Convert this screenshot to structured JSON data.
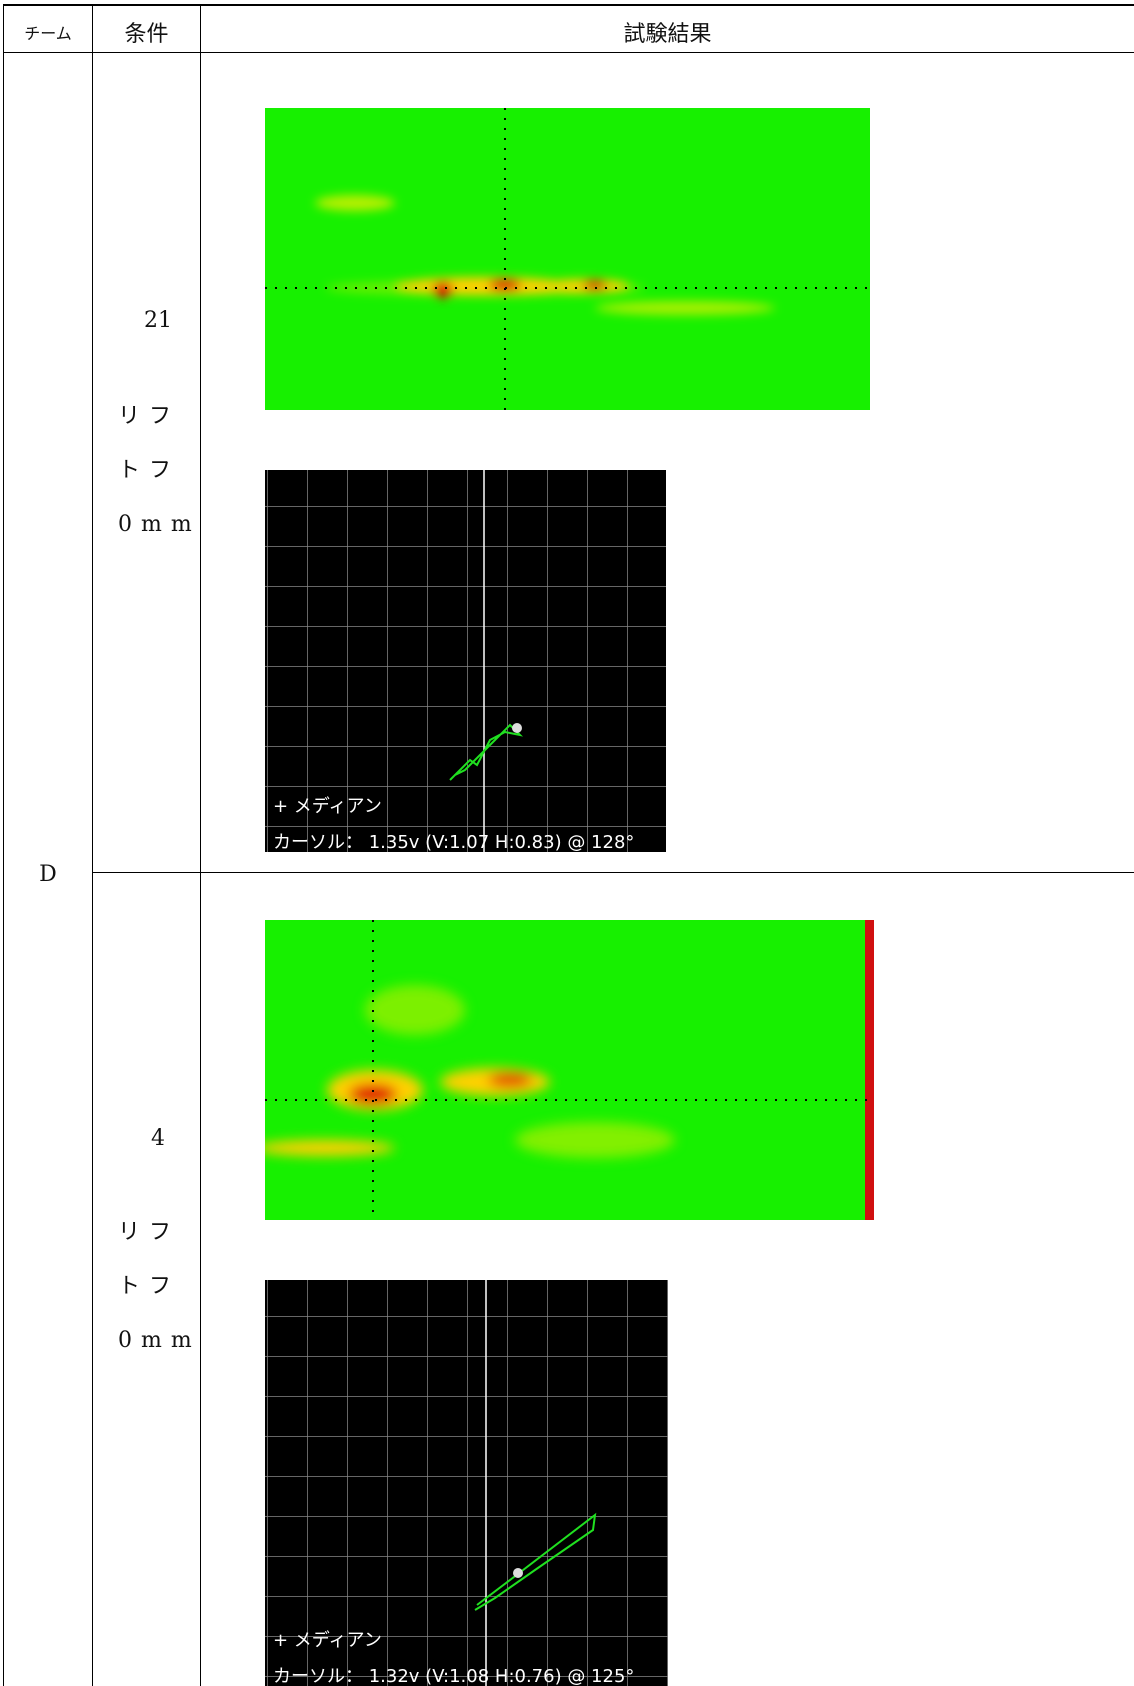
{
  "table": {
    "headers": [
      "チーム",
      "条件",
      "試験結果"
    ],
    "team": "D",
    "rows": [
      {
        "condition": "21",
        "lift": "リフトフ 0mm",
        "scope": {
          "legend": "+ メディアン",
          "cursor": "カーソル： 1.35v (V:1.07 H:0.83) @ 128°"
        }
      },
      {
        "condition": "4",
        "lift": "リフトフ 0mm",
        "scope": {
          "legend": "+ メディアン",
          "cursor": "カーソル： 1.32v (V:1.08 H:0.76) @ 125°"
        }
      }
    ]
  }
}
